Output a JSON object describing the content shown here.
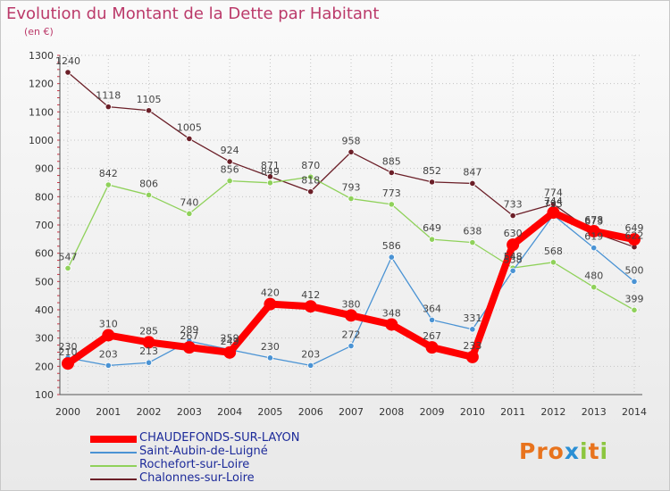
{
  "page": {
    "title": "Evolution du Montant de la Dette par Habitant",
    "subtitle": "(en €)",
    "logo": "Proxiti"
  },
  "chart_data": {
    "type": "line",
    "title": "Evolution du Montant de la Dette par Habitant",
    "subtitle": "(en €)",
    "xlabel": "",
    "ylabel": "",
    "x": [
      2000,
      2001,
      2002,
      2003,
      2004,
      2005,
      2006,
      2007,
      2008,
      2009,
      2010,
      2011,
      2012,
      2013,
      2014
    ],
    "ylim": [
      100,
      1300
    ],
    "yticks": [
      100,
      200,
      300,
      400,
      500,
      600,
      700,
      800,
      900,
      1000,
      1100,
      1200,
      1300
    ],
    "grid": true,
    "legend_position": "bottom-left",
    "series": [
      {
        "name": "CHAUDEFONDS-SUR-LAYON",
        "color": "#ff0000",
        "values": [
          210,
          310,
          285,
          267,
          249,
          420,
          412,
          380,
          348,
          267,
          233,
          630,
          744,
          678,
          649
        ]
      },
      {
        "name": "Saint-Aubin-de-Luigné",
        "color": "#4a93d4",
        "values": [
          230,
          203,
          213,
          289,
          259,
          230,
          203,
          272,
          586,
          364,
          331,
          538,
          735,
          619,
          500
        ]
      },
      {
        "name": "Rochefort-sur-Loire",
        "color": "#8fd15a",
        "values": [
          547,
          842,
          806,
          740,
          856,
          849,
          870,
          793,
          773,
          649,
          638,
          548,
          568,
          480,
          399
        ]
      },
      {
        "name": "Chalonnes-sur-Loire",
        "color": "#6b1f28",
        "values": [
          1240,
          1118,
          1105,
          1005,
          924,
          871,
          818,
          958,
          885,
          852,
          847,
          733,
          774,
          673,
          622
        ]
      }
    ]
  }
}
